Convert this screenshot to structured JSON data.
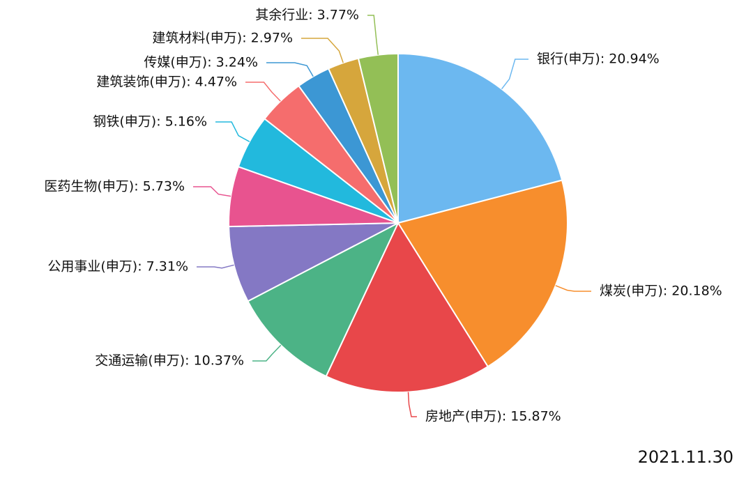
{
  "chart_data": {
    "type": "pie",
    "values": [
      20.94,
      20.18,
      15.87,
      10.37,
      7.31,
      5.73,
      5.16,
      4.47,
      3.24,
      2.97,
      3.77
    ],
    "value_labels": [
      "银行(申万): 20.94%",
      "煤炭(申万): 20.18%",
      "房地产(申万): 15.87%",
      "交通运输(申万): 10.37%",
      "公用事业(申万): 7.31%",
      "医药生物(申万): 5.73%",
      "钢铁(申万): 5.16%",
      "建筑装饰(申万): 4.47%",
      "传媒(申万): 3.24%",
      "建筑材料(申万): 2.97%",
      "其余行业: 3.77%"
    ],
    "colors": [
      "#6cb8f0",
      "#f78e2d",
      "#e8474a",
      "#4cb386",
      "#8478c4",
      "#e8538f",
      "#22b9dd",
      "#f56d6d",
      "#3c97d4",
      "#d6a63c",
      "#93bf56"
    ],
    "annotation": "2021.11.30"
  }
}
